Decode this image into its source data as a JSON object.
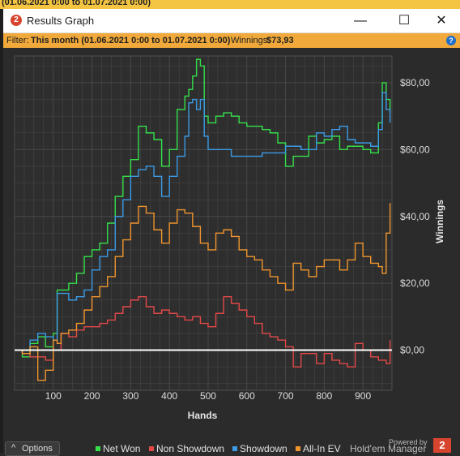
{
  "top_strip": {
    "text": "(01.06.2021 0:00 to 01.07.2021 0:00)"
  },
  "window": {
    "title": "Results Graph",
    "minimize": "—",
    "maximize": "☐",
    "close": "✕"
  },
  "filter": {
    "label": "Filter:",
    "value": "This month (01.06.2021 0:00 to 01.07.2021 0:00)",
    "winnings_label": "Winnings:",
    "winnings_value": "$73,93",
    "help": "?"
  },
  "bottom": {
    "options_label": "Options",
    "options_chevron": "^",
    "powered_by": "Powered by",
    "brand": "Hold'em Manager",
    "brand_logo": "2"
  },
  "colors": {
    "net_won": "#35e04a",
    "non_showdown": "#e34848",
    "showdown": "#3b9be6",
    "allin_ev": "#f0952e",
    "background": "#2b2b2b",
    "grid": "#4a4a4a",
    "zero_line": "#ffffff"
  },
  "chart_data": {
    "type": "line",
    "xlabel": "Hands",
    "ylabel": "Winnings",
    "xlim": [
      0,
      975
    ],
    "ylim": [
      -12,
      88
    ],
    "xticks": [
      "100",
      "200",
      "300",
      "400",
      "500",
      "600",
      "700",
      "800",
      "900"
    ],
    "xtick_values": [
      100,
      200,
      300,
      400,
      500,
      600,
      700,
      800,
      900
    ],
    "yticks": [
      "$0,00",
      "$20,00",
      "$40,00",
      "$60,00",
      "$80,00"
    ],
    "ytick_values": [
      0,
      20,
      40,
      60,
      80
    ],
    "grid": true,
    "legend_position": "bottom",
    "series": [
      {
        "name": "Net Won",
        "color_key": "net_won",
        "x": [
          0,
          20,
          40,
          60,
          80,
          100,
          110,
          120,
          140,
          160,
          180,
          200,
          220,
          240,
          260,
          280,
          300,
          320,
          340,
          360,
          380,
          400,
          420,
          440,
          450,
          460,
          470,
          480,
          490,
          500,
          520,
          540,
          560,
          580,
          600,
          620,
          640,
          660,
          680,
          700,
          720,
          740,
          760,
          780,
          800,
          820,
          840,
          860,
          880,
          900,
          920,
          940,
          950,
          960,
          970
        ],
        "y": [
          0,
          -2,
          2,
          4,
          1,
          5,
          18,
          18,
          20,
          23,
          28,
          30,
          32,
          38,
          46,
          52,
          57,
          67,
          65,
          63,
          55,
          60,
          72,
          76,
          78,
          82,
          87,
          85,
          70,
          68,
          70,
          71,
          70,
          68,
          67,
          67,
          66,
          65,
          62,
          55,
          58,
          58,
          64,
          62,
          63,
          64,
          60,
          61,
          61,
          60,
          59,
          68,
          80,
          75,
          71
        ]
      },
      {
        "name": "Non Showdown",
        "color_key": "non_showdown",
        "x": [
          0,
          20,
          40,
          60,
          80,
          100,
          110,
          120,
          140,
          160,
          180,
          200,
          220,
          240,
          260,
          280,
          300,
          320,
          340,
          360,
          380,
          400,
          420,
          440,
          460,
          480,
          500,
          520,
          540,
          560,
          580,
          600,
          620,
          640,
          660,
          680,
          700,
          720,
          740,
          760,
          780,
          800,
          820,
          840,
          860,
          880,
          900,
          920,
          940,
          950,
          960,
          970
        ],
        "y": [
          0,
          -1,
          -2,
          -2,
          -3,
          0,
          0,
          5,
          4,
          6,
          7,
          7,
          8,
          9,
          11,
          13,
          15,
          16,
          13,
          11,
          12,
          11,
          10,
          9,
          10,
          8,
          7,
          11,
          16,
          14,
          12,
          10,
          8,
          5,
          4,
          3,
          1,
          -5,
          -1,
          -1,
          -4,
          -1,
          -3,
          -4,
          -5,
          2,
          0,
          -2,
          -3,
          -3,
          -4,
          3
        ]
      },
      {
        "name": "Showdown",
        "color_key": "showdown",
        "x": [
          0,
          20,
          40,
          60,
          80,
          100,
          110,
          120,
          140,
          160,
          180,
          200,
          220,
          240,
          260,
          280,
          300,
          320,
          340,
          360,
          380,
          400,
          420,
          440,
          450,
          460,
          470,
          480,
          490,
          500,
          520,
          540,
          560,
          580,
          600,
          620,
          640,
          660,
          680,
          700,
          720,
          740,
          760,
          780,
          800,
          820,
          840,
          860,
          880,
          900,
          920,
          940,
          950,
          960,
          970
        ],
        "y": [
          0,
          0,
          3,
          5,
          4,
          3,
          17,
          17,
          15,
          16,
          18,
          24,
          28,
          30,
          40,
          45,
          52,
          54,
          55,
          52,
          46,
          52,
          58,
          64,
          74,
          75,
          72,
          75,
          64,
          60,
          60,
          60,
          58,
          58,
          58,
          58,
          59,
          59,
          59,
          61,
          61,
          60,
          60,
          65,
          64,
          66,
          67,
          63,
          62,
          62,
          61,
          66,
          77,
          72,
          68
        ]
      },
      {
        "name": "All-In EV",
        "color_key": "allin_ev",
        "x": [
          0,
          20,
          40,
          60,
          80,
          100,
          110,
          120,
          140,
          160,
          180,
          200,
          220,
          240,
          260,
          280,
          300,
          320,
          340,
          360,
          380,
          400,
          420,
          440,
          460,
          480,
          500,
          520,
          540,
          560,
          580,
          600,
          620,
          640,
          660,
          680,
          700,
          720,
          740,
          760,
          780,
          800,
          820,
          840,
          860,
          880,
          900,
          920,
          940,
          950,
          960,
          970
        ],
        "y": [
          0,
          -1,
          1,
          -9,
          -6,
          3,
          2,
          5,
          6,
          8,
          12,
          16,
          19,
          22,
          28,
          33,
          38,
          43,
          41,
          36,
          32,
          38,
          42,
          41,
          37,
          32,
          30,
          35,
          36,
          34,
          30,
          28,
          27,
          24,
          22,
          20,
          18,
          26,
          24,
          22,
          25,
          27,
          27,
          24,
          27,
          32,
          28,
          26,
          25,
          23,
          35,
          44
        ]
      }
    ]
  }
}
